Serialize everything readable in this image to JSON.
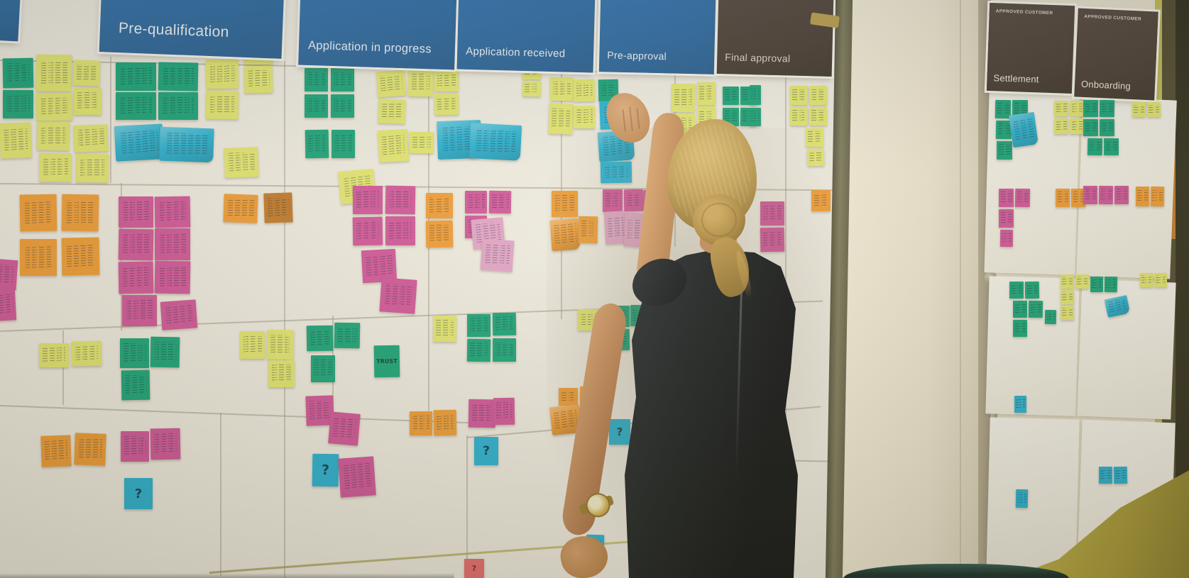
{
  "scene": {
    "type": "photograph",
    "description": "Woman in a black dress placing a cyan sticky note on a customer journey mapping wall covered with colored sticky notes; a second board labelled for approved customers hangs on a glass door to the right",
    "figure": "woman with blonde hair in a bun, black cap-sleeve dress, gold wristwatch"
  },
  "palette": {
    "header_blue": "#2A68A1",
    "header_dark": "#453A31",
    "wall_white": "#F3F1EA",
    "pillar_cream": "#ECE5D1",
    "floor_olive": "#A79A38",
    "notes": {
      "g": "#14A378",
      "y": "#E3E76F",
      "c": "#23B1D4",
      "o": "#F09B33",
      "bo": "#C07728",
      "p": "#D1539A",
      "lp": "#E2A3C7",
      "rd": "#E96A6E"
    }
  },
  "left_board": {
    "columns": [
      {
        "label": "Pre-qualification"
      },
      {
        "label": "Application in progress"
      },
      {
        "label": "Application received"
      },
      {
        "label": "Pre-approval"
      },
      {
        "label": "Final approval"
      }
    ],
    "notes": [
      [
        4,
        82,
        43,
        42,
        "g",
        -1
      ],
      [
        4,
        127,
        43,
        40,
        "g",
        0
      ],
      [
        51,
        77,
        50,
        52,
        "y",
        1
      ],
      [
        51,
        131,
        51,
        39,
        "y",
        -1
      ],
      [
        103,
        85,
        38,
        36,
        "y",
        2
      ],
      [
        104,
        124,
        39,
        38,
        "y",
        0
      ],
      [
        0,
        173,
        44,
        50,
        "y",
        -2
      ],
      [
        163,
        88,
        57,
        40,
        "g",
        0
      ],
      [
        223,
        88,
        56,
        40,
        "g",
        1
      ],
      [
        163,
        130,
        57,
        39,
        "g",
        0
      ],
      [
        223,
        130,
        56,
        39,
        "g",
        0
      ],
      [
        290,
        84,
        46,
        41,
        "y",
        -1
      ],
      [
        290,
        128,
        46,
        40,
        "y",
        1
      ],
      [
        344,
        54,
        40,
        37,
        "y",
        0
      ],
      [
        344,
        93,
        40,
        38,
        "y",
        -1
      ],
      [
        52,
        172,
        46,
        40,
        "y",
        1
      ],
      [
        104,
        176,
        48,
        38,
        "y",
        -2
      ],
      [
        162,
        176,
        68,
        50,
        "c",
        -3,
        null,
        1
      ],
      [
        225,
        180,
        76,
        48,
        "c",
        2,
        null,
        1
      ],
      [
        55,
        216,
        46,
        40,
        "y",
        0
      ],
      [
        107,
        217,
        46,
        40,
        "y",
        1
      ],
      [
        316,
        208,
        48,
        42,
        "y",
        -2
      ],
      [
        429,
        96,
        33,
        33,
        "g",
        0
      ],
      [
        466,
        96,
        33,
        33,
        "g",
        0
      ],
      [
        429,
        133,
        33,
        33,
        "g",
        0
      ],
      [
        466,
        133,
        33,
        33,
        "g",
        0
      ],
      [
        430,
        183,
        33,
        40,
        "g",
        -1
      ],
      [
        467,
        183,
        33,
        40,
        "g",
        0
      ],
      [
        531,
        100,
        40,
        36,
        "y",
        -4
      ],
      [
        575,
        98,
        35,
        38,
        "y",
        1
      ],
      [
        612,
        99,
        34,
        30,
        "y",
        0
      ],
      [
        612,
        132,
        34,
        30,
        "y",
        -1
      ],
      [
        533,
        140,
        38,
        34,
        "y",
        2
      ],
      [
        533,
        183,
        42,
        45,
        "y",
        -3
      ],
      [
        577,
        186,
        34,
        30,
        "y",
        1
      ],
      [
        627,
        182,
        36,
        34,
        "y",
        -2
      ],
      [
        478,
        240,
        50,
        46,
        "y",
        -5
      ],
      [
        616,
        170,
        62,
        54,
        "c",
        -2,
        null,
        1
      ],
      [
        662,
        175,
        72,
        50,
        "c",
        3,
        null,
        1
      ],
      [
        736,
        88,
        26,
        24,
        "y",
        0
      ],
      [
        736,
        114,
        26,
        22,
        "y",
        1
      ],
      [
        775,
        109,
        33,
        33,
        "y",
        0
      ],
      [
        808,
        112,
        30,
        31,
        "y",
        -1
      ],
      [
        773,
        146,
        34,
        43,
        "y",
        2
      ],
      [
        808,
        149,
        30,
        32,
        "y",
        0
      ],
      [
        843,
        112,
        28,
        31,
        "g",
        -1
      ],
      [
        845,
        142,
        46,
        40,
        "c",
        -2
      ],
      [
        843,
        185,
        50,
        42,
        "c",
        -4,
        null,
        1
      ],
      [
        846,
        228,
        44,
        30,
        "c",
        -1
      ],
      [
        946,
        118,
        33,
        40,
        "y",
        1
      ],
      [
        946,
        160,
        33,
        38,
        "y",
        -1
      ],
      [
        982,
        116,
        26,
        32,
        "y",
        0
      ],
      [
        982,
        150,
        26,
        30,
        "y",
        1
      ],
      [
        1018,
        122,
        23,
        26,
        "g",
        0
      ],
      [
        1043,
        122,
        23,
        26,
        "g",
        0
      ],
      [
        1018,
        152,
        23,
        26,
        "g",
        0
      ],
      [
        1043,
        152,
        23,
        26,
        "g",
        1
      ],
      [
        1056,
        120,
        16,
        28,
        "g",
        0
      ],
      [
        1056,
        152,
        16,
        26,
        "g",
        0
      ],
      [
        1113,
        121,
        25,
        27,
        "y",
        0
      ],
      [
        1140,
        121,
        25,
        27,
        "y",
        -1
      ],
      [
        1113,
        151,
        25,
        26,
        "y",
        1
      ],
      [
        1140,
        151,
        25,
        26,
        "y",
        0
      ],
      [
        1135,
        181,
        25,
        26,
        "y",
        0
      ],
      [
        1137,
        210,
        24,
        24,
        "y",
        -1
      ],
      [
        28,
        274,
        52,
        52,
        "o",
        -1
      ],
      [
        87,
        274,
        52,
        52,
        "o",
        1
      ],
      [
        28,
        337,
        52,
        52,
        "o",
        0
      ],
      [
        87,
        335,
        53,
        53,
        "o",
        -1
      ],
      [
        -8,
        366,
        32,
        42,
        "p",
        4
      ],
      [
        -6,
        406,
        28,
        46,
        "p",
        -3
      ],
      [
        167,
        277,
        49,
        44,
        "p",
        0
      ],
      [
        218,
        277,
        50,
        44,
        "p",
        -1
      ],
      [
        167,
        323,
        49,
        44,
        "p",
        1
      ],
      [
        218,
        322,
        50,
        45,
        "p",
        0
      ],
      [
        167,
        369,
        49,
        45,
        "p",
        -1
      ],
      [
        218,
        368,
        50,
        46,
        "p",
        1
      ],
      [
        172,
        416,
        49,
        44,
        "p",
        0
      ],
      [
        227,
        424,
        50,
        40,
        "p",
        -4
      ],
      [
        315,
        274,
        48,
        40,
        "o",
        2
      ],
      [
        372,
        272,
        40,
        42,
        "bo",
        -2
      ],
      [
        497,
        262,
        42,
        40,
        "p",
        0
      ],
      [
        543,
        262,
        42,
        40,
        "p",
        1
      ],
      [
        497,
        306,
        42,
        40,
        "p",
        -1
      ],
      [
        543,
        305,
        42,
        41,
        "p",
        0
      ],
      [
        510,
        352,
        48,
        46,
        "p",
        -3
      ],
      [
        536,
        393,
        50,
        48,
        "p",
        4
      ],
      [
        600,
        272,
        38,
        36,
        "o",
        0
      ],
      [
        600,
        311,
        38,
        38,
        "o",
        -1
      ],
      [
        655,
        269,
        31,
        32,
        "p",
        0
      ],
      [
        689,
        269,
        31,
        32,
        "p",
        1
      ],
      [
        655,
        304,
        31,
        32,
        "p",
        0
      ],
      [
        665,
        308,
        45,
        42,
        "lp",
        -5
      ],
      [
        678,
        338,
        45,
        44,
        "lp",
        4
      ],
      [
        777,
        269,
        37,
        37,
        "o",
        0
      ],
      [
        776,
        309,
        40,
        44,
        "o",
        -4,
        null,
        1
      ],
      [
        815,
        305,
        27,
        38,
        "o",
        1
      ],
      [
        849,
        267,
        28,
        32,
        "p",
        0
      ],
      [
        879,
        267,
        27,
        31,
        "p",
        -1
      ],
      [
        906,
        268,
        25,
        30,
        "p",
        1
      ],
      [
        852,
        298,
        30,
        46,
        "lp",
        -3
      ],
      [
        880,
        300,
        34,
        48,
        "lp",
        3
      ],
      [
        1071,
        284,
        34,
        34,
        "p",
        0
      ],
      [
        1071,
        321,
        34,
        34,
        "p",
        -1
      ],
      [
        1143,
        268,
        27,
        30,
        "o",
        0
      ],
      [
        55,
        484,
        42,
        34,
        "y",
        0
      ],
      [
        101,
        481,
        42,
        35,
        "y",
        -1
      ],
      [
        169,
        477,
        41,
        42,
        "g",
        0
      ],
      [
        212,
        475,
        41,
        43,
        "g",
        1
      ],
      [
        171,
        522,
        40,
        42,
        "g",
        -1
      ],
      [
        338,
        467,
        35,
        39,
        "y",
        0
      ],
      [
        376,
        465,
        38,
        42,
        "y",
        1
      ],
      [
        378,
        508,
        37,
        38,
        "y",
        0
      ],
      [
        432,
        459,
        37,
        36,
        "g",
        -1
      ],
      [
        471,
        455,
        36,
        36,
        "g",
        1
      ],
      [
        438,
        501,
        34,
        38,
        "g",
        0
      ],
      [
        527,
        487,
        36,
        45,
        "g",
        -1,
        "TRUST"
      ],
      [
        610,
        445,
        33,
        37,
        "y",
        1
      ],
      [
        658,
        443,
        33,
        32,
        "g",
        0
      ],
      [
        694,
        441,
        33,
        32,
        "g",
        -1
      ],
      [
        658,
        478,
        33,
        32,
        "g",
        1
      ],
      [
        694,
        477,
        33,
        33,
        "g",
        0
      ],
      [
        814,
        436,
        31,
        30,
        "y",
        0
      ],
      [
        853,
        431,
        34,
        30,
        "g",
        0
      ],
      [
        888,
        430,
        20,
        30,
        "g",
        0
      ],
      [
        853,
        464,
        34,
        30,
        "g",
        -1
      ],
      [
        1086,
        460,
        24,
        28,
        "g",
        0
      ],
      [
        1054,
        484,
        30,
        34,
        "o",
        1
      ],
      [
        58,
        614,
        42,
        44,
        "o",
        -2
      ],
      [
        105,
        611,
        44,
        45,
        "o",
        2
      ],
      [
        170,
        608,
        40,
        43,
        "p",
        0
      ],
      [
        212,
        604,
        42,
        44,
        "p",
        -1
      ],
      [
        175,
        674,
        40,
        44,
        "c",
        0,
        "?"
      ],
      [
        431,
        558,
        39,
        42,
        "p",
        -2
      ],
      [
        464,
        582,
        42,
        45,
        "p",
        5
      ],
      [
        577,
        580,
        32,
        34,
        "o",
        0
      ],
      [
        611,
        578,
        32,
        36,
        "o",
        -1
      ],
      [
        440,
        640,
        37,
        46,
        "c",
        1,
        "?"
      ],
      [
        478,
        645,
        50,
        55,
        "p",
        -4
      ],
      [
        660,
        563,
        38,
        40,
        "p",
        1
      ],
      [
        695,
        561,
        30,
        38,
        "p",
        -1
      ],
      [
        668,
        616,
        34,
        40,
        "c",
        0,
        "?"
      ],
      [
        787,
        547,
        27,
        25,
        "o",
        0
      ],
      [
        817,
        545,
        27,
        25,
        "o",
        1
      ],
      [
        776,
        572,
        42,
        40,
        "o",
        -6,
        null,
        1
      ],
      [
        858,
        591,
        30,
        36,
        "c",
        0,
        "?"
      ],
      [
        826,
        754,
        25,
        33,
        "c",
        1
      ],
      [
        654,
        788,
        28,
        27,
        "rd",
        0,
        "?"
      ]
    ]
  },
  "right_board": {
    "header_tag": "APPROVED CUSTOMER",
    "columns": [
      {
        "label": "Settlement"
      },
      {
        "label": "Onboarding"
      }
    ],
    "notes": [
      [
        1402,
        141,
        22,
        26,
        "g",
        1
      ],
      [
        1426,
        141,
        22,
        26,
        "g",
        0
      ],
      [
        1403,
        170,
        22,
        26,
        "g",
        1
      ],
      [
        1426,
        170,
        22,
        26,
        "g",
        0
      ],
      [
        1404,
        199,
        22,
        26,
        "g",
        0
      ],
      [
        1424,
        160,
        36,
        46,
        "c",
        -8,
        null,
        1
      ],
      [
        1485,
        142,
        20,
        22,
        "y",
        0
      ],
      [
        1507,
        142,
        20,
        22,
        "y",
        1
      ],
      [
        1485,
        167,
        20,
        22,
        "y",
        0
      ],
      [
        1507,
        167,
        20,
        22,
        "y",
        0
      ],
      [
        1526,
        141,
        21,
        24,
        "g",
        0
      ],
      [
        1549,
        141,
        21,
        24,
        "g",
        1
      ],
      [
        1526,
        168,
        21,
        24,
        "g",
        0
      ],
      [
        1549,
        168,
        21,
        24,
        "g",
        0
      ],
      [
        1532,
        195,
        21,
        24,
        "g",
        1
      ],
      [
        1555,
        195,
        21,
        24,
        "g",
        0
      ],
      [
        1595,
        144,
        19,
        21,
        "y",
        0
      ],
      [
        1616,
        144,
        19,
        21,
        "y",
        -1
      ],
      [
        1407,
        266,
        21,
        26,
        "p",
        0
      ],
      [
        1430,
        266,
        21,
        26,
        "p",
        1
      ],
      [
        1407,
        295,
        21,
        26,
        "p",
        0
      ],
      [
        1409,
        324,
        18,
        24,
        "p",
        1
      ],
      [
        1487,
        266,
        20,
        26,
        "o",
        0
      ],
      [
        1509,
        266,
        20,
        26,
        "o",
        -1
      ],
      [
        1526,
        262,
        20,
        26,
        "p",
        0
      ],
      [
        1548,
        262,
        20,
        26,
        "p",
        1
      ],
      [
        1570,
        262,
        20,
        26,
        "p",
        0
      ],
      [
        1600,
        263,
        19,
        28,
        "o",
        0
      ],
      [
        1621,
        263,
        19,
        28,
        "o",
        1
      ],
      [
        1422,
        397,
        20,
        24,
        "g",
        0
      ],
      [
        1444,
        397,
        20,
        24,
        "g",
        -1
      ],
      [
        1427,
        424,
        20,
        24,
        "g",
        0
      ],
      [
        1449,
        424,
        20,
        24,
        "g",
        1
      ],
      [
        1427,
        451,
        20,
        24,
        "g",
        0
      ],
      [
        1472,
        437,
        16,
        20,
        "g",
        1
      ],
      [
        1494,
        387,
        19,
        20,
        "y",
        0
      ],
      [
        1515,
        387,
        19,
        20,
        "y",
        0
      ],
      [
        1494,
        409,
        19,
        20,
        "y",
        -1
      ],
      [
        1494,
        431,
        19,
        20,
        "y",
        0
      ],
      [
        1536,
        390,
        18,
        22,
        "g",
        0
      ],
      [
        1556,
        390,
        18,
        22,
        "g",
        1
      ],
      [
        1558,
        419,
        32,
        26,
        "c",
        -12,
        null,
        1
      ],
      [
        1606,
        385,
        18,
        20,
        "y",
        0
      ],
      [
        1626,
        385,
        18,
        20,
        "y",
        -1
      ],
      [
        1429,
        558,
        17,
        24,
        "c",
        0
      ],
      [
        1431,
        690,
        17,
        26,
        "c",
        1
      ],
      [
        1548,
        658,
        19,
        24,
        "c",
        0
      ],
      [
        1569,
        658,
        19,
        24,
        "c",
        -1
      ]
    ]
  }
}
